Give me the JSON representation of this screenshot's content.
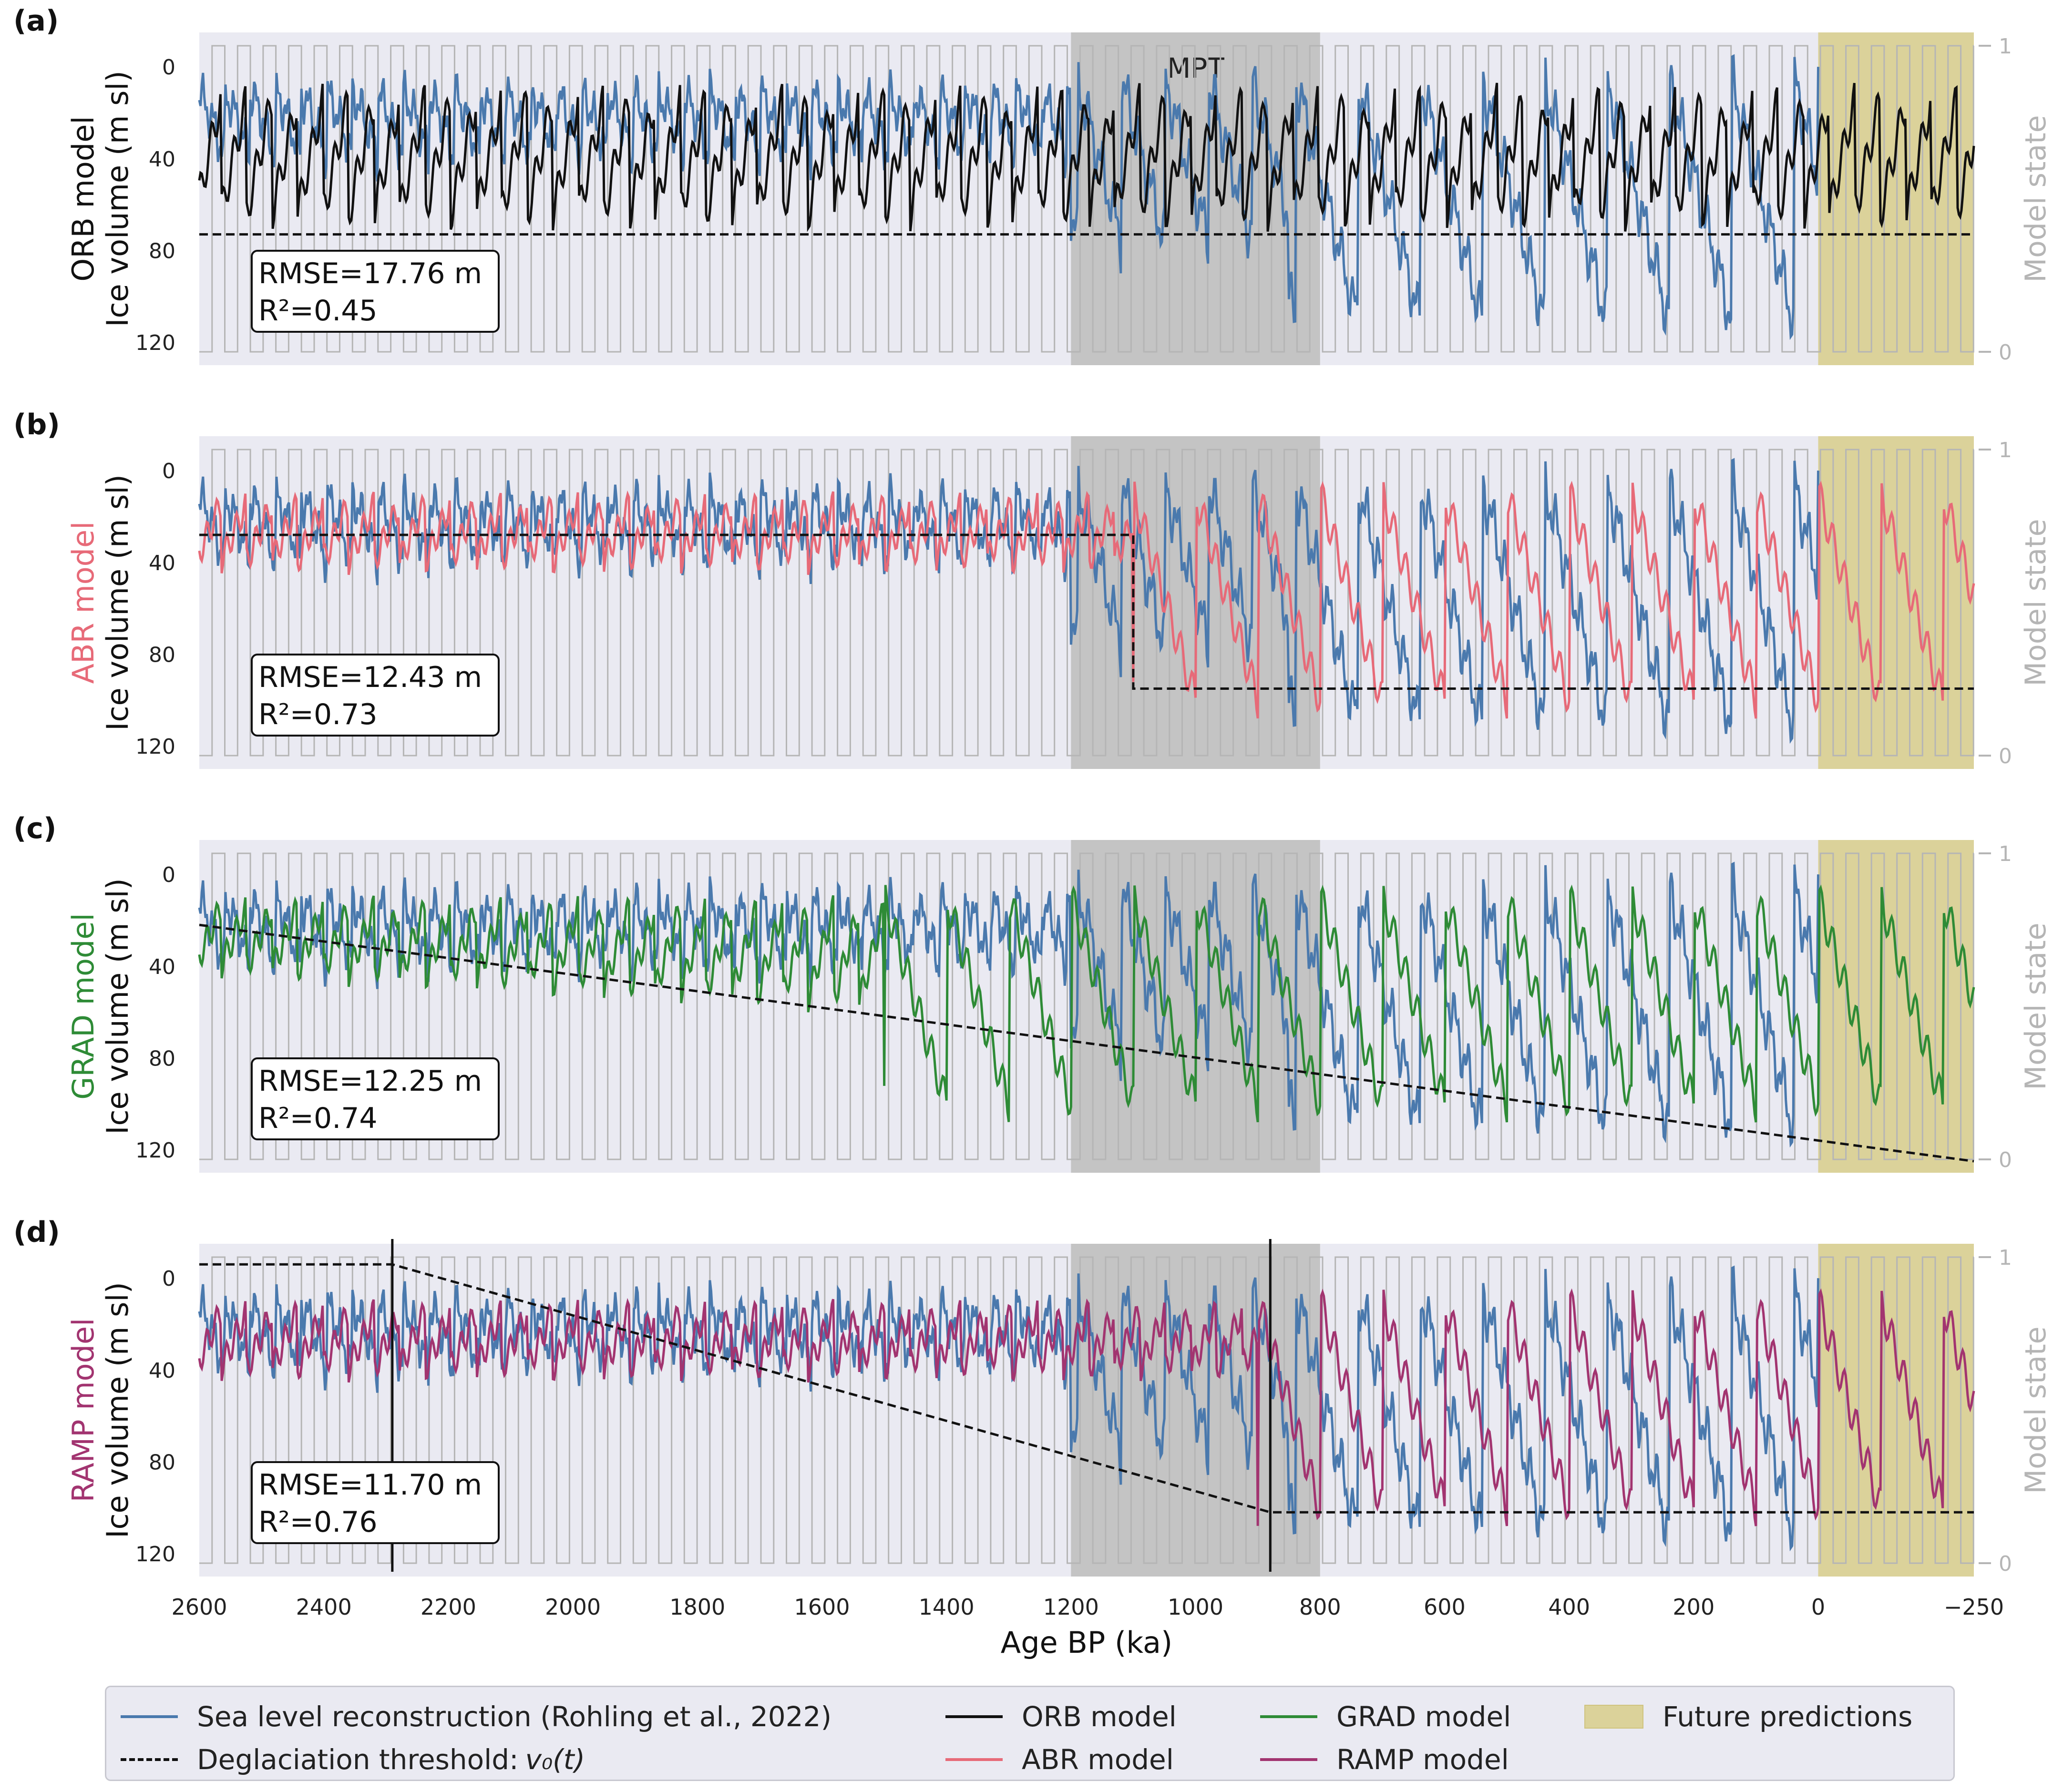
{
  "colors": {
    "background": "#ffffff",
    "axes_face": "#eaeaf2",
    "mpt_shade": "#c4c4c4",
    "future_shade": "#dbd29a",
    "sea_level": "#4a79ad",
    "orb": "#111111",
    "abr": "#e76a78",
    "grad": "#2e8b36",
    "ramp": "#a23470",
    "state_step": "#b5b5b5",
    "threshold": "#111111"
  },
  "xaxis": {
    "label": "Age BP (ka)",
    "ticks": [
      2600,
      2400,
      2200,
      2000,
      1800,
      1600,
      1400,
      1200,
      1000,
      800,
      600,
      400,
      200,
      0,
      -250
    ],
    "tick_labels": [
      "2600",
      "2400",
      "2200",
      "2000",
      "1800",
      "1600",
      "1400",
      "1200",
      "1000",
      "800",
      "600",
      "400",
      "200",
      "0",
      "−250"
    ]
  },
  "right_axis": {
    "label": "Model state",
    "ticks": [
      "0",
      "1"
    ]
  },
  "annotation_mpt": "MPT",
  "chart_data": [
    {
      "type": "line",
      "panel": "(a)",
      "ylabel_model": "ORB model",
      "ylabel": "Ice volume (m sl)",
      "y_ticks": [
        0,
        40,
        80,
        120
      ],
      "ylim": [
        -15,
        130
      ],
      "xlim": [
        2600,
        -250
      ],
      "shaded_regions": [
        {
          "name": "MPT",
          "x": [
            1200,
            800
          ]
        },
        {
          "name": "Future predictions",
          "x": [
            0,
            -250
          ]
        }
      ],
      "stats": {
        "rmse": "RMSE=17.76 m",
        "r2": "R²=0.45"
      },
      "threshold": {
        "x": [
          2600,
          -250
        ],
        "y": [
          73,
          73
        ]
      },
      "state_period_ka": 41,
      "series": [
        {
          "name": "Sea level reconstruction (Rohling et al., 2022)",
          "approx": "41-kyr cycles amplitude ~30 m before 1200 ka, ~100-kyr sawtooth cycles reaching 100-120 m after 900 ka"
        },
        {
          "name": "ORB model",
          "approx": "41-kyr sawtooth cycles 10-70 m"
        }
      ]
    },
    {
      "type": "line",
      "panel": "(b)",
      "ylabel_model": "ABR model",
      "ylabel": "Ice volume (m sl)",
      "y_ticks": [
        0,
        40,
        80,
        120
      ],
      "ylim": [
        -15,
        130
      ],
      "xlim": [
        2600,
        -250
      ],
      "stats": {
        "rmse": "RMSE=12.43 m",
        "r2": "R²=0.73"
      },
      "threshold": {
        "x": [
          2600,
          1100,
          1100,
          -250
        ],
        "y": [
          28,
          28,
          95,
          95
        ]
      },
      "series": [
        {
          "name": "Sea level reconstruction (Rohling et al., 2022)"
        },
        {
          "name": "ABR model",
          "approx": "~41-kyr oscillations 10-45 m before 1100 ka, 100-kyr cycles up to ~100 m after"
        }
      ]
    },
    {
      "type": "line",
      "panel": "(c)",
      "ylabel_model": "GRAD model",
      "ylabel": "Ice volume (m sl)",
      "y_ticks": [
        0,
        40,
        80,
        120
      ],
      "ylim": [
        -15,
        130
      ],
      "xlim": [
        2600,
        -250
      ],
      "stats": {
        "rmse": "RMSE=12.25 m",
        "r2": "R²=0.74"
      },
      "threshold": {
        "x": [
          2600,
          -250
        ],
        "y": [
          22,
          125
        ]
      },
      "series": [
        {
          "name": "Sea level reconstruction (Rohling et al., 2022)"
        },
        {
          "name": "GRAD model",
          "approx": "oscillations with growing amplitude, peaks up to ~110 m after 900 ka"
        }
      ]
    },
    {
      "type": "line",
      "panel": "(d)",
      "ylabel_model": "RAMP model",
      "ylabel": "Ice volume (m sl)",
      "y_ticks": [
        0,
        40,
        80,
        120
      ],
      "ylim": [
        -15,
        130
      ],
      "xlim": [
        2600,
        -250
      ],
      "stats": {
        "rmse": "RMSE=11.70 m",
        "r2": "R²=0.76"
      },
      "threshold": {
        "x": [
          2600,
          2290,
          880,
          -250
        ],
        "y": [
          -6,
          -6,
          102,
          102
        ]
      },
      "vlines": [
        2290,
        880
      ],
      "series": [
        {
          "name": "Sea level reconstruction (Rohling et al., 2022)"
        },
        {
          "name": "RAMP model",
          "approx": "41-kyr cycles 10-50 m transitioning to 100-kyr cycles up to ~105 m"
        }
      ]
    }
  ],
  "legend": {
    "items": [
      {
        "key": "sea_level",
        "label": "Sea level reconstruction (Rohling et al., 2022)",
        "kind": "line"
      },
      {
        "key": "threshold",
        "label": "Deglaciation threshold: ",
        "math": "v₀(t)",
        "kind": "dash"
      },
      {
        "key": "orb",
        "label": "ORB model",
        "kind": "line"
      },
      {
        "key": "abr",
        "label": "ABR model",
        "kind": "line"
      },
      {
        "key": "grad",
        "label": "GRAD model",
        "kind": "line"
      },
      {
        "key": "ramp",
        "label": "RAMP model",
        "kind": "line"
      },
      {
        "key": "future_shade",
        "label": "Future predictions",
        "kind": "patch"
      }
    ]
  }
}
